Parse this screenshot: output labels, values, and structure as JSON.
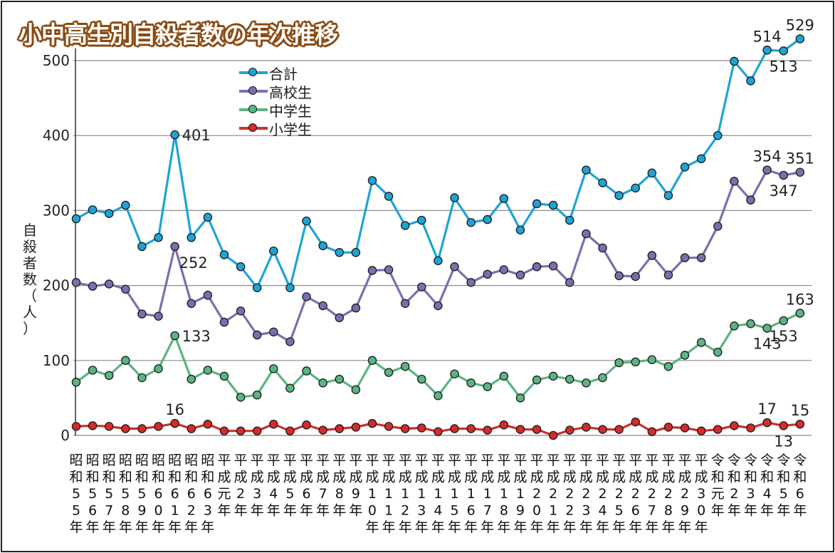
{
  "chart_data": {
    "type": "line",
    "title": "小中高生別自殺者数の年次推移",
    "xlabel": "",
    "ylabel": "自殺者数（人）",
    "ylim": [
      0,
      530
    ],
    "yticks": [
      0,
      100,
      200,
      300,
      400,
      500
    ],
    "grid": true,
    "legend_position": "top-left",
    "categories": [
      "昭和55年",
      "昭和56年",
      "昭和57年",
      "昭和58年",
      "昭和59年",
      "昭和60年",
      "昭和61年",
      "昭和62年",
      "昭和63年",
      "平成元年",
      "平成2年",
      "平成3年",
      "平成4年",
      "平成5年",
      "平成6年",
      "平成7年",
      "平成8年",
      "平成9年",
      "平成10年",
      "平成11年",
      "平成12年",
      "平成13年",
      "平成14年",
      "平成15年",
      "平成16年",
      "平成17年",
      "平成18年",
      "平成19年",
      "平成20年",
      "平成21年",
      "平成22年",
      "平成23年",
      "平成24年",
      "平成25年",
      "平成26年",
      "平成27年",
      "平成28年",
      "平成29年",
      "平成30年",
      "令和元年",
      "令和2年",
      "令和3年",
      "令和4年",
      "令和5年",
      "令和6年"
    ],
    "x_tick_rows": [
      [
        "昭",
        "和",
        "5",
        "5",
        "年"
      ],
      [
        "昭",
        "和",
        "5",
        "6",
        "年"
      ],
      [
        "昭",
        "和",
        "5",
        "7",
        "年"
      ],
      [
        "昭",
        "和",
        "5",
        "8",
        "年"
      ],
      [
        "昭",
        "和",
        "5",
        "9",
        "年"
      ],
      [
        "昭",
        "和",
        "6",
        "0",
        "年"
      ],
      [
        "昭",
        "和",
        "6",
        "1",
        "年"
      ],
      [
        "昭",
        "和",
        "6",
        "2",
        "年"
      ],
      [
        "昭",
        "和",
        "6",
        "3",
        "年"
      ],
      [
        "平",
        "成",
        "元",
        "年"
      ],
      [
        "平",
        "成",
        "2",
        "年"
      ],
      [
        "平",
        "成",
        "3",
        "年"
      ],
      [
        "平",
        "成",
        "4",
        "年"
      ],
      [
        "平",
        "成",
        "5",
        "年"
      ],
      [
        "平",
        "成",
        "6",
        "年"
      ],
      [
        "平",
        "成",
        "7",
        "年"
      ],
      [
        "平",
        "成",
        "8",
        "年"
      ],
      [
        "平",
        "成",
        "9",
        "年"
      ],
      [
        "平",
        "成",
        "1",
        "0",
        "年"
      ],
      [
        "平",
        "成",
        "1",
        "1",
        "年"
      ],
      [
        "平",
        "成",
        "1",
        "2",
        "年"
      ],
      [
        "平",
        "成",
        "1",
        "3",
        "年"
      ],
      [
        "平",
        "成",
        "1",
        "4",
        "年"
      ],
      [
        "平",
        "成",
        "1",
        "5",
        "年"
      ],
      [
        "平",
        "成",
        "1",
        "6",
        "年"
      ],
      [
        "平",
        "成",
        "1",
        "7",
        "年"
      ],
      [
        "平",
        "成",
        "1",
        "8",
        "年"
      ],
      [
        "平",
        "成",
        "1",
        "9",
        "年"
      ],
      [
        "平",
        "成",
        "2",
        "0",
        "年"
      ],
      [
        "平",
        "成",
        "2",
        "1",
        "年"
      ],
      [
        "平",
        "成",
        "2",
        "2",
        "年"
      ],
      [
        "平",
        "成",
        "2",
        "3",
        "年"
      ],
      [
        "平",
        "成",
        "2",
        "4",
        "年"
      ],
      [
        "平",
        "成",
        "2",
        "5",
        "年"
      ],
      [
        "平",
        "成",
        "2",
        "6",
        "年"
      ],
      [
        "平",
        "成",
        "2",
        "7",
        "年"
      ],
      [
        "平",
        "成",
        "2",
        "8",
        "年"
      ],
      [
        "平",
        "成",
        "2",
        "9",
        "年"
      ],
      [
        "平",
        "成",
        "3",
        "0",
        "年"
      ],
      [
        "令",
        "和",
        "元",
        "年"
      ],
      [
        "令",
        "和",
        "2",
        "年"
      ],
      [
        "令",
        "和",
        "3",
        "年"
      ],
      [
        "令",
        "和",
        "4",
        "年"
      ],
      [
        "令",
        "和",
        "5",
        "年"
      ],
      [
        "令",
        "和",
        "6",
        "年"
      ]
    ],
    "series": [
      {
        "name": "合計",
        "color": "#1fa3d6",
        "values": [
          289,
          301,
          296,
          307,
          252,
          264,
          401,
          264,
          291,
          241,
          225,
          197,
          246,
          197,
          286,
          253,
          244,
          244,
          340,
          319,
          280,
          287,
          233,
          317,
          284,
          288,
          316,
          274,
          309,
          307,
          287,
          354,
          337,
          320,
          330,
          350,
          320,
          358,
          369,
          400,
          499,
          473,
          514,
          513,
          529
        ]
      },
      {
        "name": "高校生",
        "color": "#7a6fae",
        "values": [
          204,
          199,
          202,
          195,
          162,
          159,
          252,
          176,
          187,
          151,
          166,
          134,
          138,
          125,
          185,
          173,
          157,
          170,
          220,
          221,
          176,
          198,
          173,
          225,
          204,
          215,
          221,
          214,
          225,
          226,
          204,
          269,
          250,
          213,
          212,
          240,
          214,
          237,
          237,
          279,
          339,
          314,
          354,
          347,
          351
        ]
      },
      {
        "name": "中学生",
        "color": "#5bb482",
        "values": [
          71,
          87,
          80,
          100,
          77,
          89,
          133,
          75,
          87,
          79,
          51,
          54,
          89,
          63,
          86,
          70,
          75,
          61,
          100,
          84,
          92,
          75,
          53,
          82,
          70,
          65,
          79,
          50,
          74,
          79,
          75,
          70,
          77,
          97,
          98,
          101,
          92,
          107,
          124,
          111,
          146,
          149,
          143,
          153,
          163
        ]
      },
      {
        "name": "小学生",
        "color": "#d22c2c",
        "values": [
          12,
          13,
          12,
          9,
          9,
          12,
          16,
          9,
          15,
          6,
          6,
          6,
          15,
          6,
          14,
          7,
          9,
          11,
          16,
          12,
          9,
          10,
          5,
          9,
          9,
          7,
          14,
          8,
          8,
          0,
          7,
          11,
          8,
          8,
          18,
          5,
          11,
          10,
          6,
          8,
          13,
          10,
          17,
          13,
          15
        ]
      }
    ],
    "annotations": [
      {
        "series": "合計",
        "category": "昭和61年",
        "text": "401",
        "pos": "right"
      },
      {
        "series": "高校生",
        "category": "昭和61年",
        "text": "252",
        "pos": "below-right"
      },
      {
        "series": "中学生",
        "category": "昭和61年",
        "text": "133",
        "pos": "right"
      },
      {
        "series": "小学生",
        "category": "昭和61年",
        "text": "16",
        "pos": "above"
      },
      {
        "series": "合計",
        "category": "令和4年",
        "text": "514",
        "pos": "above"
      },
      {
        "series": "合計",
        "category": "令和5年",
        "text": "513",
        "pos": "below"
      },
      {
        "series": "合計",
        "category": "令和6年",
        "text": "529",
        "pos": "above"
      },
      {
        "series": "高校生",
        "category": "令和4年",
        "text": "354",
        "pos": "above"
      },
      {
        "series": "高校生",
        "category": "令和5年",
        "text": "347",
        "pos": "below"
      },
      {
        "series": "高校生",
        "category": "令和6年",
        "text": "351",
        "pos": "above"
      },
      {
        "series": "中学生",
        "category": "令和4年",
        "text": "143",
        "pos": "below"
      },
      {
        "series": "中学生",
        "category": "令和5年",
        "text": "153",
        "pos": "below"
      },
      {
        "series": "中学生",
        "category": "令和6年",
        "text": "163",
        "pos": "above"
      },
      {
        "series": "小学生",
        "category": "令和4年",
        "text": "17",
        "pos": "above"
      },
      {
        "series": "小学生",
        "category": "令和5年",
        "text": "13",
        "pos": "below"
      },
      {
        "series": "小学生",
        "category": "令和6年",
        "text": "15",
        "pos": "above"
      }
    ]
  },
  "header": {
    "title": "小中高生別自殺者数の年次推移"
  },
  "axis": {
    "ylabel_chars": [
      "自",
      "殺",
      "者",
      "数",
      "（",
      "人",
      "）"
    ]
  },
  "legend": [
    {
      "label": "合計",
      "color": "#1fa3d6"
    },
    {
      "label": "高校生",
      "color": "#7a6fae"
    },
    {
      "label": "中学生",
      "color": "#5bb482"
    },
    {
      "label": "小学生",
      "color": "#d22c2c"
    }
  ]
}
